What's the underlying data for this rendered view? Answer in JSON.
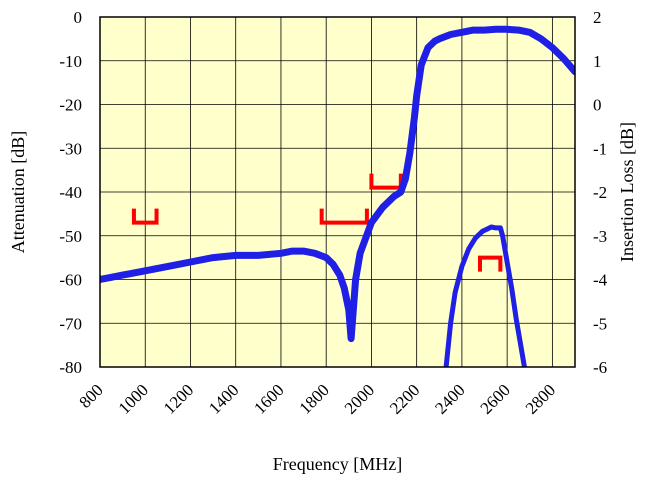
{
  "chart_data": {
    "type": "line",
    "xlabel": "Frequency [MHz]",
    "ylabel_left": "Attenuation [dB]",
    "ylabel_right": "Insertion Loss [dB]",
    "xlim": [
      800,
      2900
    ],
    "ylim_left": [
      -80,
      0
    ],
    "ylim_right": [
      -6,
      2
    ],
    "x_ticks": [
      "800",
      "1000",
      "1200",
      "1400",
      "1600",
      "1800",
      "2000",
      "2200",
      "2400",
      "2600",
      "2800"
    ],
    "y_left_ticks": [
      "0",
      "-10",
      "-20",
      "-30",
      "-40",
      "-50",
      "-60",
      "-70",
      "-80"
    ],
    "y_right_ticks": [
      "2",
      "1",
      "0",
      "-1",
      "-2",
      "-3",
      "-4",
      "-5",
      "-6"
    ],
    "grid": true,
    "colors": {
      "plot_background": "#ffffcc",
      "curve": "#1f1fe6",
      "spec": "#ff0000",
      "grid": "#000000"
    },
    "series": [
      {
        "axis": "left",
        "x": [
          800,
          850,
          900,
          1000,
          1100,
          1200,
          1300,
          1400,
          1500,
          1600,
          1650,
          1700,
          1750,
          1800,
          1830,
          1860,
          1880,
          1900,
          1910,
          1920,
          1930,
          1950,
          2000,
          2050,
          2100,
          2130,
          2150,
          2170,
          2190,
          2200,
          2220,
          2250,
          2280,
          2300,
          2350,
          2400,
          2450,
          2500,
          2550,
          2600,
          2650,
          2700,
          2750,
          2800,
          2850,
          2900
        ],
        "y": [
          -60,
          -59.5,
          -59,
          -58,
          -57,
          -56,
          -55,
          -54.5,
          -54.5,
          -54,
          -53.5,
          -53.5,
          -54,
          -55,
          -56.5,
          -59,
          -62,
          -67,
          -73.5,
          -67,
          -60,
          -54,
          -47,
          -43.5,
          -41,
          -40,
          -37,
          -31,
          -23,
          -18,
          -11,
          -7,
          -5.5,
          -5,
          -4,
          -3.5,
          -3,
          -3,
          -2.8,
          -2.8,
          -3,
          -3.5,
          -5,
          -7,
          -9.5,
          -12.5
        ]
      },
      {
        "axis": "right",
        "x": [
          2330,
          2350,
          2370,
          2400,
          2430,
          2460,
          2490,
          2510,
          2530,
          2550,
          2570,
          2580,
          2600,
          2620,
          2640,
          2660,
          2680
        ],
        "y": [
          -6,
          -5,
          -4.3,
          -3.7,
          -3.3,
          -3.05,
          -2.9,
          -2.85,
          -2.8,
          -2.82,
          -2.82,
          -3,
          -3.6,
          -4.2,
          -4.9,
          -5.5,
          -6.1
        ]
      }
    ],
    "spec_marks": [
      {
        "shape": "notch",
        "x_range": [
          950,
          1050
        ],
        "y": -47,
        "axis": "left"
      },
      {
        "shape": "notch",
        "x_range": [
          1780,
          1980
        ],
        "y": -47,
        "axis": "left"
      },
      {
        "shape": "notch",
        "x_range": [
          2000,
          2130
        ],
        "y": -39,
        "axis": "left"
      },
      {
        "shape": "bracket",
        "x_range": [
          2480,
          2570
        ],
        "y": -3.5,
        "axis": "right"
      }
    ]
  }
}
